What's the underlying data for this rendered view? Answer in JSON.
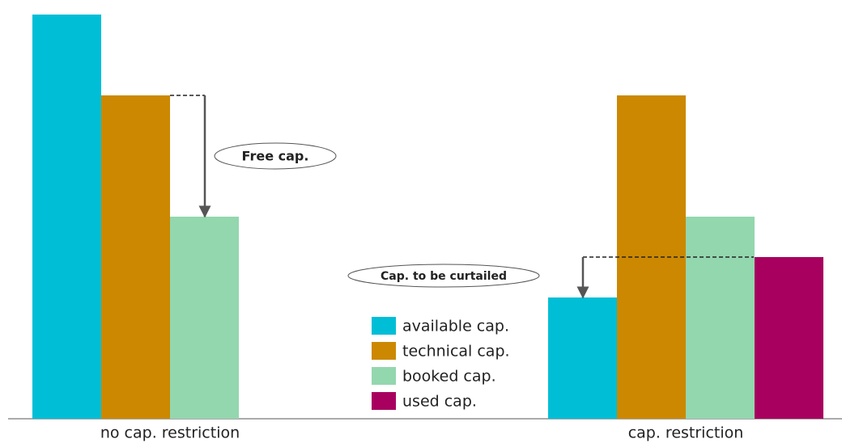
{
  "chart_data": {
    "type": "bar",
    "categories": [
      "no cap. restriction",
      "cap. restriction"
    ],
    "series": [
      {
        "name": "available cap.",
        "color": "#00bed6",
        "values": [
          10,
          3
        ]
      },
      {
        "name": "technical cap.",
        "color": "#cc8800",
        "values": [
          8,
          8
        ]
      },
      {
        "name": "booked cap.",
        "color": "#93d7ae",
        "values": [
          5,
          5
        ]
      },
      {
        "name": "used cap.",
        "color": "#a8005f",
        "values": [
          null,
          4
        ]
      }
    ],
    "ylim": [
      0,
      10
    ],
    "annotations": [
      "Free cap.",
      "Cap. to be curtailed"
    ]
  }
}
